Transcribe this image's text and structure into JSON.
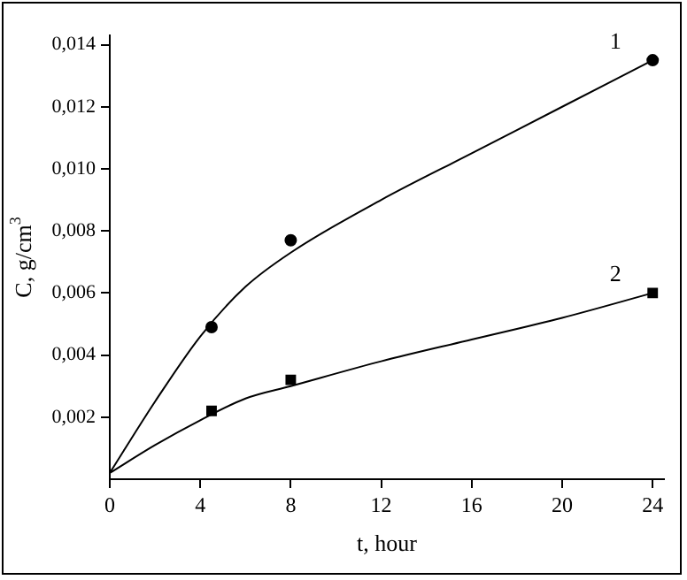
{
  "chart_data": {
    "type": "line",
    "xlabel": "t, hour",
    "ylabel": "C, g/cm$^{3}$",
    "xlim": [
      0,
      24.5
    ],
    "xticks": [
      0,
      4,
      8,
      12,
      16,
      20,
      24
    ],
    "ylim": [
      0,
      0.0143
    ],
    "yticks": [
      {
        "value": 0.002,
        "label": "0,002"
      },
      {
        "value": 0.004,
        "label": "0,004"
      },
      {
        "value": 0.006,
        "label": "0,006"
      },
      {
        "value": 0.008,
        "label": "0,008"
      },
      {
        "value": 0.01,
        "label": "0,010"
      },
      {
        "value": 0.012,
        "label": "0,012"
      },
      {
        "value": 0.014,
        "label": "0,014"
      }
    ],
    "grid": false,
    "legend": false,
    "series": [
      {
        "name": "1",
        "type": "line",
        "color": "#000000",
        "marker": "none",
        "x": [
          0,
          2,
          4,
          6,
          8,
          12,
          16,
          20,
          24
        ],
        "values": [
          0.0002,
          0.0025,
          0.0046,
          0.0062,
          0.0073,
          0.009,
          0.0105,
          0.012,
          0.0135
        ]
      },
      {
        "name": "2",
        "type": "line",
        "color": "#000000",
        "marker": "none",
        "x": [
          0,
          2,
          4,
          6,
          8,
          12,
          16,
          20,
          24
        ],
        "values": [
          0.0002,
          0.0011,
          0.0019,
          0.0026,
          0.003,
          0.0038,
          0.0045,
          0.0052,
          0.006
        ]
      },
      {
        "type": "scatter",
        "color": "#000000",
        "marker": "circle",
        "x": [
          4.5,
          8,
          24
        ],
        "values": [
          0.0049,
          0.0077,
          0.0135
        ]
      },
      {
        "type": "scatter",
        "color": "#000000",
        "marker": "square",
        "x": [
          4.5,
          8,
          24
        ],
        "values": [
          0.0022,
          0.0032,
          0.006
        ]
      }
    ]
  }
}
